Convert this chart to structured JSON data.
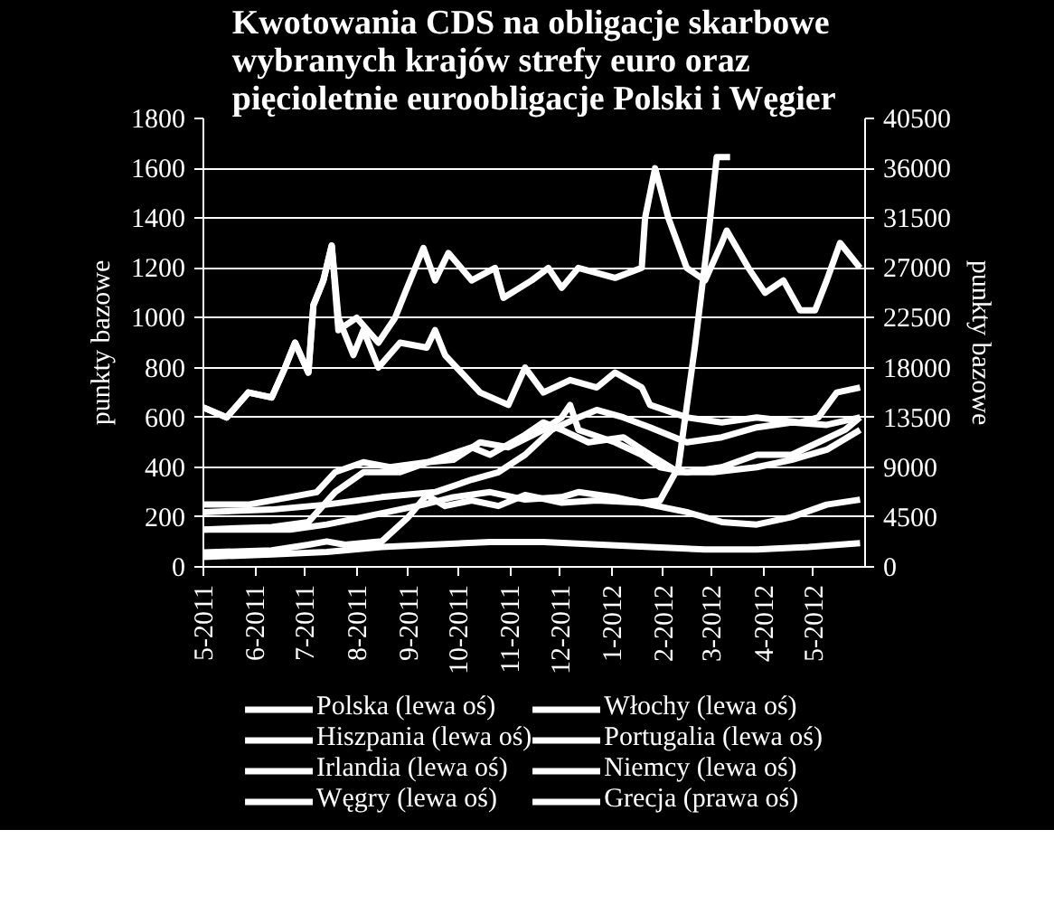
{
  "chart_data": {
    "type": "line",
    "title": "Kwotowania CDS na obligacje skarbowe\nwybranych krajów strefy euro oraz\npięcioletnie euroobligacje Polski i Węgier",
    "ylabel": "punkty bazowe",
    "y2label": "punkty bazowe",
    "xlim": [
      "2011-05-01",
      "2012-06-01"
    ],
    "xticks": [
      {
        "value": "2011-05",
        "label": "5-2011"
      },
      {
        "value": "2011-06",
        "label": "6-2011"
      },
      {
        "value": "2011-07",
        "label": "7-2011"
      },
      {
        "value": "2011-08",
        "label": "8-2011"
      },
      {
        "value": "2011-09",
        "label": "9-2011"
      },
      {
        "value": "2011-10",
        "label": "10-2011"
      },
      {
        "value": "2011-11",
        "label": "11-2011"
      },
      {
        "value": "2011-12",
        "label": "12-2011"
      },
      {
        "value": "2012-01",
        "label": "1-2012"
      },
      {
        "value": "2012-02",
        "label": "2-2012"
      },
      {
        "value": "2012-03",
        "label": "3-2012"
      },
      {
        "value": "2012-04",
        "label": "4-2012"
      },
      {
        "value": "2012-05",
        "label": "5-2012"
      }
    ],
    "ylim": [
      0,
      1800
    ],
    "yticks": [
      0,
      200,
      400,
      600,
      800,
      1000,
      1200,
      1400,
      1600,
      1800
    ],
    "y2lim": [
      0,
      40500
    ],
    "y2ticks": [
      0,
      4500,
      9000,
      13500,
      18000,
      22500,
      27000,
      31500,
      36000,
      40500
    ],
    "grid": "y",
    "legend": "bottom",
    "line_style": "solid",
    "series": [
      {
        "name": "Polska (lewa oś)",
        "color": "#ffffff",
        "x": [
          "2011-05-01",
          "2011-06-22",
          "2011-07-14",
          "2011-08-05",
          "2011-09-10",
          "2011-09-28",
          "2011-10-20",
          "2011-11-10",
          "2011-12-02",
          "2011-12-12",
          "2012-01-03",
          "2012-01-24",
          "2012-02-15",
          "2012-03-07",
          "2012-03-28",
          "2012-04-18",
          "2012-05-09",
          "2012-05-29"
        ],
        "values": [
          150,
          150,
          170,
          200,
          250,
          280,
          300,
          270,
          280,
          300,
          280,
          250,
          220,
          180,
          170,
          200,
          250,
          270
        ]
      },
      {
        "name": "Włochy (lewa oś)",
        "color": "#ffffff",
        "x": [
          "2011-05-01",
          "2011-06-11",
          "2011-07-03",
          "2011-07-19",
          "2011-08-05",
          "2011-08-27",
          "2011-09-17",
          "2011-10-09",
          "2011-10-20",
          "2011-11-10",
          "2011-11-21",
          "2011-12-02",
          "2011-12-18",
          "2012-01-08",
          "2012-01-24",
          "2012-02-10",
          "2012-03-02",
          "2012-03-28",
          "2012-04-18",
          "2012-05-09",
          "2012-05-29"
        ],
        "values": [
          150,
          160,
          180,
          300,
          380,
          380,
          430,
          480,
          450,
          530,
          580,
          550,
          500,
          520,
          450,
          380,
          380,
          400,
          430,
          470,
          550
        ]
      },
      {
        "name": "Hiszpania (lewa oś)",
        "color": "#ffffff",
        "x": [
          "2011-05-01",
          "2011-05-28",
          "2011-06-22",
          "2011-07-08",
          "2011-07-19",
          "2011-08-05",
          "2011-08-21",
          "2011-09-12",
          "2011-09-28",
          "2011-10-14",
          "2011-10-31",
          "2011-11-21",
          "2011-12-02",
          "2011-12-07",
          "2011-12-12",
          "2012-01-03",
          "2012-01-19",
          "2012-01-30",
          "2012-02-15",
          "2012-03-07",
          "2012-03-28",
          "2012-04-18",
          "2012-05-04",
          "2012-05-20",
          "2012-05-29"
        ],
        "values": [
          250,
          250,
          280,
          300,
          380,
          420,
          400,
          420,
          430,
          500,
          480,
          550,
          600,
          650,
          550,
          500,
          450,
          400,
          380,
          400,
          450,
          450,
          500,
          550,
          600
        ]
      },
      {
        "name": "Portugalia (lewa oś)",
        "color": "#ffffff",
        "x": [
          "2011-05-01",
          "2011-05-15",
          "2011-05-28",
          "2011-06-11",
          "2011-06-19",
          "2011-06-25",
          "2011-07-03",
          "2011-07-06",
          "2011-07-12",
          "2011-07-17",
          "2011-07-21",
          "2011-08-01",
          "2011-08-14",
          "2011-08-24",
          "2011-08-30",
          "2011-09-10",
          "2011-09-17",
          "2011-09-25",
          "2011-10-09",
          "2011-10-23",
          "2011-10-28",
          "2011-11-14",
          "2011-11-24",
          "2011-12-02",
          "2011-12-12",
          "2012-01-03",
          "2012-01-19",
          "2012-01-21",
          "2012-01-27",
          "2012-02-04",
          "2012-02-15",
          "2012-02-26",
          "2012-03-07",
          "2012-03-10",
          "2012-03-23",
          "2012-04-02",
          "2012-04-13",
          "2012-04-23",
          "2012-05-02",
          "2012-05-09",
          "2012-05-17",
          "2012-05-29"
        ],
        "values": [
          640,
          600,
          700,
          680,
          800,
          900,
          780,
          1050,
          1150,
          1290,
          950,
          1000,
          900,
          1000,
          1100,
          1280,
          1150,
          1260,
          1150,
          1200,
          1080,
          1150,
          1200,
          1120,
          1200,
          1160,
          1200,
          1400,
          1600,
          1400,
          1200,
          1150,
          1300,
          1350,
          1200,
          1100,
          1150,
          1030,
          1030,
          1150,
          1300,
          1200
        ]
      },
      {
        "name": "Irlandia (lewa oś)",
        "color": "#ffffff",
        "x": [
          "2011-05-01",
          "2011-05-15",
          "2011-05-28",
          "2011-06-11",
          "2011-06-19",
          "2011-06-25",
          "2011-07-03",
          "2011-07-06",
          "2011-07-12",
          "2011-07-17",
          "2011-07-21",
          "2011-07-30",
          "2011-08-05",
          "2011-08-14",
          "2011-08-27",
          "2011-09-12",
          "2011-09-17",
          "2011-09-23",
          "2011-09-30",
          "2011-10-14",
          "2011-10-31",
          "2011-11-10",
          "2011-11-21",
          "2011-12-07",
          "2011-12-23",
          "2012-01-03",
          "2012-01-19",
          "2012-01-24",
          "2012-02-15",
          "2012-03-07",
          "2012-03-28",
          "2012-04-23",
          "2012-05-04",
          "2012-05-15",
          "2012-05-29"
        ],
        "values": [
          640,
          600,
          700,
          680,
          800,
          900,
          780,
          1050,
          1150,
          1290,
          1000,
          850,
          950,
          800,
          900,
          880,
          950,
          850,
          800,
          700,
          650,
          800,
          700,
          750,
          720,
          780,
          720,
          650,
          600,
          580,
          600,
          580,
          600,
          700,
          720
        ]
      },
      {
        "name": "Niemcy (lewa oś)",
        "color": "#ffffff",
        "x": [
          "2011-05-01",
          "2011-06-11",
          "2011-07-14",
          "2011-08-16",
          "2011-09-17",
          "2011-10-20",
          "2011-11-21",
          "2011-12-23",
          "2012-01-24",
          "2012-02-26",
          "2012-03-28",
          "2012-04-28",
          "2012-05-29"
        ],
        "values": [
          40,
          50,
          60,
          80,
          90,
          100,
          100,
          90,
          80,
          70,
          70,
          80,
          95
        ]
      },
      {
        "name": "Węgry (lewa oś)",
        "color": "#ffffff",
        "x": [
          "2011-05-01",
          "2011-06-11",
          "2011-07-14",
          "2011-08-16",
          "2011-09-17",
          "2011-10-09",
          "2011-10-25",
          "2011-11-10",
          "2011-11-26",
          "2011-12-12",
          "2011-12-23",
          "2012-01-08",
          "2012-01-24",
          "2012-02-15",
          "2012-03-07",
          "2012-03-28",
          "2012-04-18",
          "2012-05-09",
          "2012-05-29"
        ],
        "values": [
          220,
          230,
          250,
          280,
          300,
          350,
          380,
          450,
          550,
          600,
          630,
          600,
          560,
          500,
          520,
          560,
          580,
          570,
          600
        ]
      },
      {
        "name": "Grecja (prawa oś)",
        "color": "#ffffff",
        "axis": "y2",
        "x": [
          "2011-05-01",
          "2011-06-11",
          "2011-07-03",
          "2011-07-14",
          "2011-07-25",
          "2011-08-16",
          "2011-09-01",
          "2011-09-12",
          "2011-09-23",
          "2011-10-09",
          "2011-10-25",
          "2011-11-10",
          "2011-12-02",
          "2011-12-23",
          "2012-01-19",
          "2012-01-30",
          "2012-02-10",
          "2012-02-20",
          "2012-02-28",
          "2012-03-04",
          "2012-03-12"
        ],
        "values": [
          1300,
          1500,
          2000,
          2300,
          2000,
          2300,
          4500,
          6500,
          5500,
          6000,
          5500,
          6500,
          5800,
          6000,
          5800,
          6000,
          9000,
          20000,
          30000,
          37000,
          37000
        ]
      }
    ]
  }
}
